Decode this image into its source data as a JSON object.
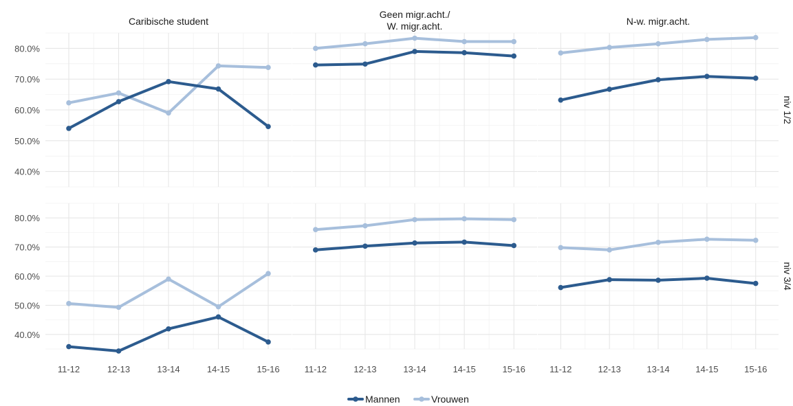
{
  "chart_data": {
    "type": "line",
    "columns": [
      "Caribische student",
      "Geen migr.acht./\nW. migr.acht.",
      "N-w. migr.acht."
    ],
    "rows": [
      "niv 1/2",
      "niv 3/4"
    ],
    "categories": [
      "11-12",
      "12-13",
      "13-14",
      "14-15",
      "15-16"
    ],
    "y_ticks": [
      "40.0%",
      "50.0%",
      "60.0%",
      "70.0%",
      "80.0%"
    ],
    "ylim": [
      0.35,
      0.85
    ],
    "grid": true,
    "legend_position": "bottom",
    "series_names": [
      "Mannen",
      "Vrouwen"
    ],
    "colors": {
      "Mannen": "#2c5b8e",
      "Vrouwen": "#a7bfdc"
    },
    "panels": [
      {
        "row": "niv 1/2",
        "column": "Caribische student",
        "series": [
          {
            "name": "Mannen",
            "values": [
              0.54,
              0.627,
              0.692,
              0.668,
              0.546
            ]
          },
          {
            "name": "Vrouwen",
            "values": [
              0.623,
              0.655,
              0.59,
              0.743,
              0.738
            ]
          }
        ]
      },
      {
        "row": "niv 1/2",
        "column": "Geen migr.acht./\nW. migr.acht.",
        "series": [
          {
            "name": "Mannen",
            "values": [
              0.746,
              0.749,
              0.79,
              0.786,
              0.775
            ]
          },
          {
            "name": "Vrouwen",
            "values": [
              0.8,
              0.815,
              0.833,
              0.822,
              0.822
            ]
          }
        ]
      },
      {
        "row": "niv 1/2",
        "column": "N-w. migr.acht.",
        "series": [
          {
            "name": "Mannen",
            "values": [
              0.632,
              0.667,
              0.698,
              0.709,
              0.703
            ]
          },
          {
            "name": "Vrouwen",
            "values": [
              0.785,
              0.803,
              0.815,
              0.829,
              0.835
            ]
          }
        ]
      },
      {
        "row": "niv 3/4",
        "column": "Caribische student",
        "series": [
          {
            "name": "Mannen",
            "values": [
              0.358,
              0.343,
              0.419,
              0.46,
              0.374
            ]
          },
          {
            "name": "Vrouwen",
            "values": [
              0.506,
              0.493,
              0.59,
              0.495,
              0.609
            ]
          }
        ]
      },
      {
        "row": "niv 3/4",
        "column": "Geen migr.acht./\nW. migr.acht.",
        "series": [
          {
            "name": "Mannen",
            "values": [
              0.69,
              0.703,
              0.714,
              0.717,
              0.705
            ]
          },
          {
            "name": "Vrouwen",
            "values": [
              0.76,
              0.773,
              0.794,
              0.797,
              0.794
            ]
          }
        ]
      },
      {
        "row": "niv 3/4",
        "column": "N-w. migr.acht.",
        "series": [
          {
            "name": "Mannen",
            "values": [
              0.561,
              0.588,
              0.586,
              0.593,
              0.575
            ]
          },
          {
            "name": "Vrouwen",
            "values": [
              0.698,
              0.69,
              0.716,
              0.727,
              0.723
            ]
          }
        ]
      }
    ]
  }
}
